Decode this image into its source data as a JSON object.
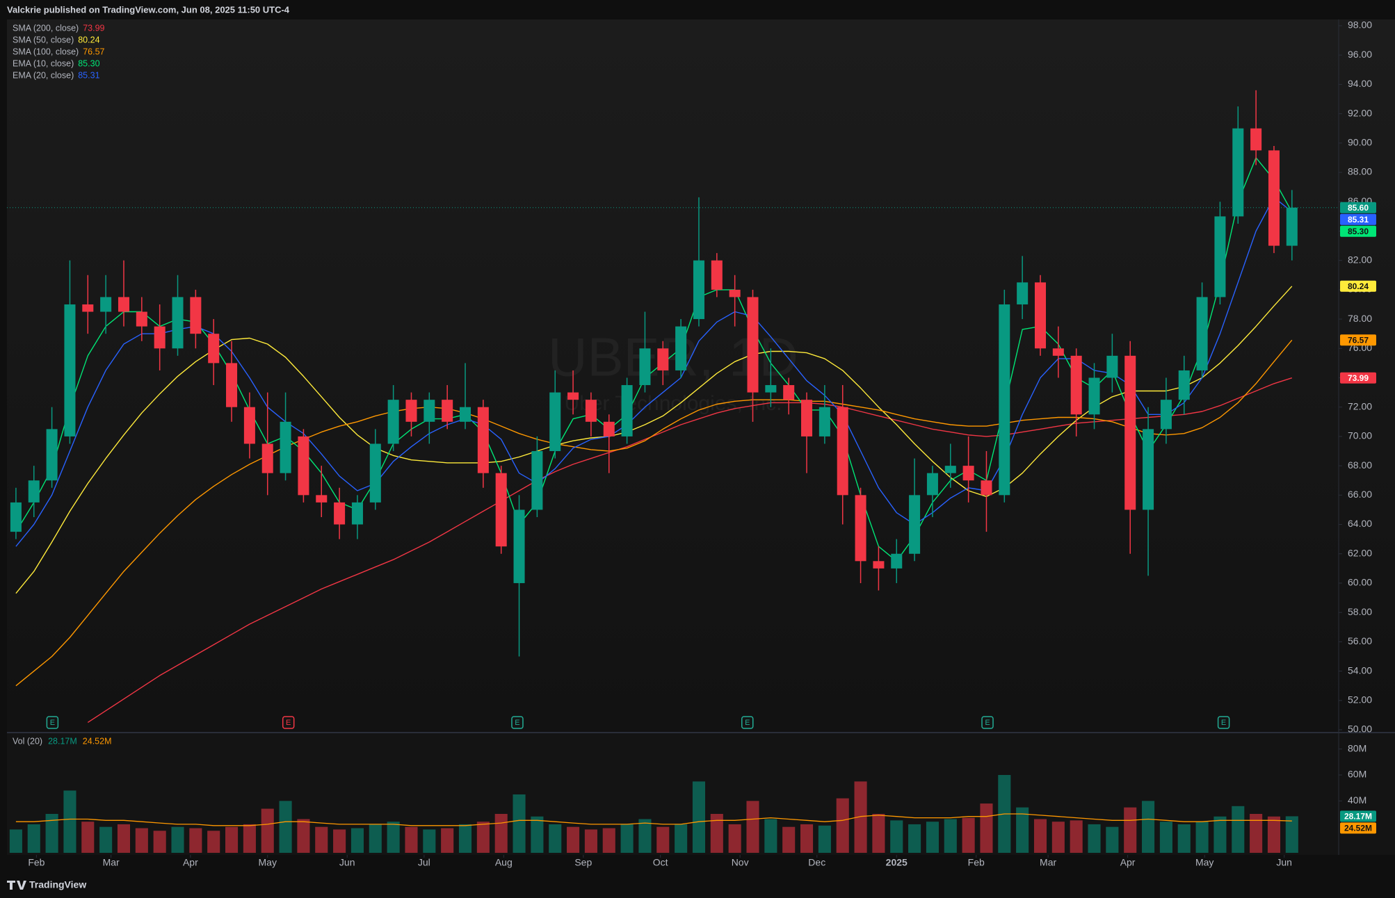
{
  "header": "Valckrie published on TradingView.com, Jun 08, 2025 11:50 UTC-4",
  "footer": "TradingView",
  "chart_data": [
    {
      "type": "candlestick",
      "watermark": "UBER, 1D",
      "watermark_subtitle": "Uber Technologies, Inc.",
      "up_color": "#089981",
      "down_color": "#f23645",
      "grid": false,
      "x": [
        0,
        1,
        2,
        3,
        4,
        5,
        6,
        7,
        8,
        9,
        10,
        11,
        12,
        13,
        14,
        15,
        16,
        17,
        18,
        19,
        20,
        21,
        22,
        23,
        24,
        25,
        26,
        27,
        28,
        29,
        30,
        31,
        32,
        33,
        34,
        35,
        36,
        37,
        38,
        39,
        40,
        41,
        42,
        43,
        44,
        45,
        46,
        47,
        48,
        49,
        50,
        51,
        52,
        53,
        54,
        55,
        56,
        57,
        58,
        59,
        60,
        61,
        62,
        63,
        64,
        65,
        66,
        67,
        68,
        69,
        70,
        71
      ],
      "open": [
        63.5,
        65.5,
        67,
        70,
        79,
        78.5,
        79.5,
        78.5,
        77.5,
        76,
        79.5,
        77,
        75,
        72,
        69.5,
        67.5,
        70,
        66,
        65.5,
        64,
        65.5,
        69.5,
        72.5,
        71,
        72.5,
        71,
        72,
        67.5,
        60,
        65,
        69,
        73,
        72.5,
        71,
        70,
        73.5,
        76,
        74.5,
        78,
        82,
        80,
        79.5,
        73,
        73.5,
        72.5,
        70,
        72,
        66,
        61.5,
        61,
        62,
        66,
        67.5,
        68,
        67,
        66,
        79,
        80.5,
        76,
        75.5,
        71.5,
        74,
        75.5,
        65,
        70.5,
        72.5,
        74.5,
        79.5,
        85,
        91,
        89.5,
        83
      ],
      "high": [
        66.5,
        68,
        72,
        82,
        81,
        81,
        82,
        79.5,
        79,
        81,
        80,
        78,
        76.5,
        73,
        73,
        73,
        70.5,
        68,
        66.5,
        66,
        70.5,
        73.5,
        73,
        73,
        73.5,
        75,
        72.5,
        68,
        66,
        70,
        74.5,
        74.5,
        73,
        71.5,
        74,
        78.5,
        76.5,
        78,
        86.3,
        82.5,
        81,
        80,
        76,
        74,
        73,
        73.5,
        73.5,
        66.5,
        62.5,
        63,
        68.5,
        68,
        69.5,
        70,
        69,
        80,
        82.3,
        81,
        77.5,
        76,
        75,
        77,
        76.5,
        72,
        74,
        75.5,
        80.5,
        86,
        92.5,
        93.6,
        89.8,
        86.8
      ],
      "low": [
        63,
        64.5,
        66.5,
        69.5,
        77,
        77,
        77.5,
        76.5,
        74.5,
        75.5,
        76,
        73.5,
        71,
        68.5,
        66,
        67,
        65.5,
        64.5,
        63,
        63,
        65,
        69,
        70,
        69.5,
        70.5,
        70.5,
        66.5,
        62,
        55,
        64.5,
        68.5,
        71.5,
        70,
        67.5,
        69.5,
        73,
        73.5,
        74,
        77.5,
        79.5,
        77.5,
        71,
        72,
        71.5,
        67.5,
        69.5,
        64,
        60,
        59.5,
        60,
        61.5,
        64.5,
        66.5,
        65.5,
        63.5,
        65.5,
        78,
        75.5,
        74,
        70,
        70.5,
        73,
        62,
        60.5,
        69.5,
        71.5,
        74,
        79,
        84.5,
        88.5,
        82.5,
        82
      ],
      "close": [
        65.5,
        67,
        70.5,
        79,
        78.5,
        79.5,
        78.5,
        77.5,
        76,
        79.5,
        77,
        75,
        72,
        69.5,
        67.5,
        71,
        66,
        65.5,
        64,
        65.5,
        69.5,
        72.5,
        71,
        72.5,
        71,
        72,
        67.5,
        62.5,
        65,
        69,
        73,
        72.5,
        71,
        70,
        73.5,
        76,
        74.5,
        77.5,
        82,
        80,
        79.5,
        73,
        73.5,
        72.5,
        70,
        72,
        66,
        61.5,
        61,
        62,
        66,
        67.5,
        68,
        67,
        66,
        79,
        80.5,
        76,
        75.5,
        71.5,
        74,
        75.5,
        65,
        70.5,
        72.5,
        74.5,
        79.5,
        85,
        91,
        89.5,
        83,
        85.6
      ],
      "last_label": "85.60",
      "series": [
        {
          "name": "SMA (200, close)",
          "color": "#f23645",
          "last_label": "73.99",
          "values": [
            null,
            null,
            null,
            null,
            50.5,
            51.3,
            52.1,
            52.9,
            53.7,
            54.4,
            55.1,
            55.8,
            56.5,
            57.2,
            57.8,
            58.4,
            59.0,
            59.6,
            60.1,
            60.6,
            61.1,
            61.6,
            62.2,
            62.8,
            63.5,
            64.2,
            64.9,
            65.6,
            66.3,
            67.0,
            67.6,
            68.1,
            68.5,
            68.9,
            69.3,
            69.8,
            70.3,
            70.8,
            71.2,
            71.6,
            71.9,
            72.1,
            72.3,
            72.3,
            72.3,
            72.2,
            72.0,
            71.7,
            71.4,
            71.1,
            70.8,
            70.5,
            70.3,
            70.1,
            70.0,
            70.1,
            70.3,
            70.5,
            70.7,
            70.9,
            71.0,
            71.1,
            71.2,
            71.3,
            71.4,
            71.5,
            71.7,
            72.1,
            72.6,
            73.1,
            73.6,
            73.99
          ]
        },
        {
          "name": "SMA (50, close)",
          "color": "#ffeb3b",
          "last_label": "80.24",
          "values": [
            59.3,
            60.8,
            62.8,
            64.9,
            66.8,
            68.5,
            70.1,
            71.6,
            72.9,
            74.1,
            75.1,
            75.9,
            76.6,
            76.7,
            76.3,
            75.4,
            74.1,
            72.7,
            71.3,
            70.1,
            69.2,
            68.7,
            68.4,
            68.3,
            68.2,
            68.2,
            68.2,
            68.3,
            68.6,
            69.0,
            69.4,
            69.7,
            69.9,
            70.0,
            70.3,
            70.8,
            71.4,
            72.3,
            73.3,
            74.3,
            75.1,
            75.6,
            75.8,
            75.8,
            75.7,
            75.3,
            74.5,
            73.3,
            72.0,
            70.8,
            69.5,
            68.3,
            67.2,
            66.3,
            65.9,
            66.5,
            67.5,
            68.8,
            70.0,
            71.1,
            72.0,
            72.7,
            73.1,
            73.1,
            73.1,
            73.4,
            74.0,
            75.0,
            76.2,
            77.5,
            78.9,
            80.24
          ]
        },
        {
          "name": "SMA (100, close)",
          "color": "#ff9800",
          "last_label": "76.57",
          "values": [
            53.0,
            54.0,
            55.0,
            56.3,
            57.8,
            59.3,
            60.8,
            62.1,
            63.4,
            64.6,
            65.7,
            66.6,
            67.4,
            68.1,
            68.7,
            69.3,
            69.8,
            70.3,
            70.7,
            71.0,
            71.4,
            71.7,
            71.9,
            72.0,
            71.9,
            71.6,
            71.2,
            70.7,
            70.2,
            69.8,
            69.5,
            69.3,
            69.1,
            69.0,
            69.2,
            69.7,
            70.5,
            71.2,
            71.8,
            72.2,
            72.4,
            72.5,
            72.5,
            72.5,
            72.4,
            72.4,
            72.2,
            72.0,
            71.8,
            71.5,
            71.2,
            71.0,
            70.8,
            70.7,
            70.7,
            70.9,
            71.1,
            71.2,
            71.3,
            71.3,
            71.2,
            71.0,
            70.6,
            70.2,
            70.1,
            70.2,
            70.6,
            71.3,
            72.3,
            73.6,
            75.1,
            76.57
          ]
        },
        {
          "name": "EMA (10, close)",
          "color": "#00e676",
          "last_label": "85.30",
          "values": [
            63.5,
            65.5,
            67.8,
            72,
            75.5,
            77.5,
            78.5,
            78.5,
            77.5,
            78,
            77.8,
            76.3,
            74.3,
            71.8,
            69.5,
            70,
            69,
            67.5,
            65.5,
            65,
            67,
            69.5,
            70.5,
            71.2,
            71.2,
            71.5,
            70.3,
            67.5,
            64,
            65.5,
            69,
            71.2,
            71.5,
            70.5,
            71.5,
            74,
            75,
            76,
            79.5,
            80,
            80,
            77.3,
            75,
            73.5,
            71.8,
            71.8,
            70,
            66,
            62.5,
            61.5,
            63.2,
            65.5,
            67,
            67.7,
            67,
            72,
            77.3,
            77.5,
            76.3,
            74,
            73.3,
            74.5,
            71.5,
            69,
            70.8,
            72.8,
            76,
            80.5,
            86,
            89,
            87.5,
            85.3
          ]
        },
        {
          "name": "EMA (20, close)",
          "color": "#2962ff",
          "last_label": "85.31",
          "values": [
            62.5,
            64,
            66,
            69,
            72,
            74.5,
            76.3,
            77,
            77,
            77.3,
            77.5,
            77,
            75.8,
            74,
            72,
            71,
            70.2,
            68.8,
            67.3,
            66.3,
            66.8,
            68.3,
            69.3,
            70.2,
            70.8,
            71.2,
            70.8,
            69.8,
            67.5,
            66.8,
            67.8,
            69.2,
            69.8,
            70,
            70.8,
            72,
            73,
            74,
            76.5,
            77.8,
            78.5,
            78.2,
            76.8,
            75.3,
            73.8,
            72.8,
            71.5,
            69,
            66.5,
            64.8,
            64,
            64.8,
            65.8,
            66.5,
            66.3,
            68.5,
            71.5,
            74,
            75.3,
            75.3,
            74.5,
            74.3,
            73.5,
            71.5,
            71.5,
            72.3,
            74,
            77,
            80.5,
            84,
            86.3,
            85.31
          ]
        }
      ],
      "xlim": [
        -0.5,
        73.6
      ],
      "xticks": [
        {
          "value": 1.14,
          "label": "Feb"
        },
        {
          "value": 5.29,
          "label": "Mar"
        },
        {
          "value": 9.71,
          "label": "Apr"
        },
        {
          "value": 14.0,
          "label": "May"
        },
        {
          "value": 18.43,
          "label": "Jun"
        },
        {
          "value": 22.71,
          "label": "Jul"
        },
        {
          "value": 27.14,
          "label": "Aug"
        },
        {
          "value": 31.57,
          "label": "Sep"
        },
        {
          "value": 35.86,
          "label": "Oct"
        },
        {
          "value": 40.29,
          "label": "Nov"
        },
        {
          "value": 44.57,
          "label": "Dec"
        },
        {
          "value": 49.0,
          "label": "2025"
        },
        {
          "value": 53.43,
          "label": "Feb"
        },
        {
          "value": 57.43,
          "label": "Mar"
        },
        {
          "value": 61.86,
          "label": "Apr"
        },
        {
          "value": 66.14,
          "label": "May"
        },
        {
          "value": 70.57,
          "label": "Jun"
        }
      ],
      "ylim": [
        50,
        98
      ],
      "yticks": [
        {
          "value": 50,
          "label": "50.00"
        },
        {
          "value": 52,
          "label": "52.00"
        },
        {
          "value": 54,
          "label": "54.00"
        },
        {
          "value": 56,
          "label": "56.00"
        },
        {
          "value": 58,
          "label": "58.00"
        },
        {
          "value": 60,
          "label": "60.00"
        },
        {
          "value": 62,
          "label": "62.00"
        },
        {
          "value": 64,
          "label": "64.00"
        },
        {
          "value": 66,
          "label": "66.00"
        },
        {
          "value": 68,
          "label": "68.00"
        },
        {
          "value": 70,
          "label": "70.00"
        },
        {
          "value": 72,
          "label": "72.00"
        },
        {
          "value": 74,
          "label": "74.00"
        },
        {
          "value": 76,
          "label": "76.00"
        },
        {
          "value": 78,
          "label": "78.00"
        },
        {
          "value": 80,
          "label": "80.00"
        },
        {
          "value": 82,
          "label": "82.00"
        },
        {
          "value": 84,
          "label": "84.00"
        },
        {
          "value": 86,
          "label": "86.00"
        },
        {
          "value": 88,
          "label": "88.00"
        },
        {
          "value": 90,
          "label": "90.00"
        },
        {
          "value": 92,
          "label": "92.00"
        },
        {
          "value": 94,
          "label": "94.00"
        },
        {
          "value": 96,
          "label": "96.00"
        },
        {
          "value": 98,
          "label": "98.00"
        }
      ],
      "earnings": {
        "label": "E",
        "x": [
          2.03,
          15.16,
          27.9,
          40.7,
          54.06,
          67.2
        ],
        "colors": [
          "#22ab94",
          "#f23645",
          "#22ab94",
          "#22ab94",
          "#22ab94",
          "#22ab94"
        ]
      }
    },
    {
      "type": "bar",
      "title": "Vol (20)",
      "x": [
        0,
        1,
        2,
        3,
        4,
        5,
        6,
        7,
        8,
        9,
        10,
        11,
        12,
        13,
        14,
        15,
        16,
        17,
        18,
        19,
        20,
        21,
        22,
        23,
        24,
        25,
        26,
        27,
        28,
        29,
        30,
        31,
        32,
        33,
        34,
        35,
        36,
        37,
        38,
        39,
        40,
        41,
        42,
        43,
        44,
        45,
        46,
        47,
        48,
        49,
        50,
        51,
        52,
        53,
        54,
        55,
        56,
        57,
        58,
        59,
        60,
        61,
        62,
        63,
        64,
        65,
        66,
        67,
        68,
        69,
        70,
        71
      ],
      "values": [
        18,
        22,
        30,
        48,
        24,
        20,
        22,
        19,
        17,
        20,
        19,
        17,
        20,
        22,
        34,
        40,
        26,
        20,
        18,
        19,
        22,
        24,
        20,
        18,
        19,
        22,
        24,
        30,
        45,
        28,
        22,
        20,
        18,
        19,
        22,
        26,
        20,
        22,
        55,
        30,
        22,
        40,
        26,
        20,
        22,
        21,
        42,
        55,
        30,
        25,
        22,
        24,
        26,
        27,
        38,
        60,
        35,
        26,
        24,
        25,
        22,
        20,
        35,
        40,
        24,
        22,
        24,
        28,
        36,
        30,
        28,
        28.17
      ],
      "last_label": "28.17M",
      "ma": {
        "color": "#ff9800",
        "last_label": "24.52M",
        "values": [
          24,
          24,
          25,
          26,
          26,
          25,
          25,
          24,
          23,
          22,
          22,
          21,
          21,
          21,
          22,
          24,
          24,
          23,
          22,
          22,
          22,
          22,
          21,
          21,
          21,
          21,
          22,
          23,
          25,
          25,
          24,
          23,
          22,
          22,
          22,
          23,
          22,
          22,
          24,
          25,
          25,
          26,
          27,
          26,
          25,
          24,
          25,
          28,
          29,
          28,
          27,
          27,
          27,
          28,
          28,
          30,
          30,
          29,
          28,
          27,
          26,
          25,
          25,
          26,
          25,
          24,
          24,
          25,
          25,
          25,
          25,
          24.52
        ]
      },
      "ylim": [
        0,
        90
      ],
      "yticks": [
        {
          "value": 40,
          "label": "40M"
        },
        {
          "value": 60,
          "label": "60M"
        },
        {
          "value": 80,
          "label": "80M"
        }
      ]
    }
  ]
}
